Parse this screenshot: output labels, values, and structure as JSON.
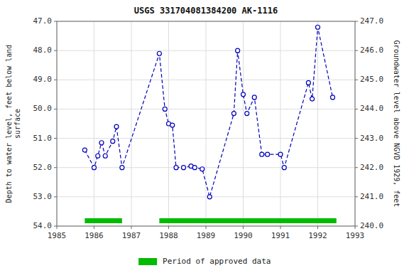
{
  "chart_data": {
    "type": "line",
    "title": "USGS 331704081384200 AK-1116",
    "y_label": "Depth to water level, feet below land\nsurface",
    "y2_label": "Groundwater level above NGVD 1929, feet",
    "xlim": [
      1985,
      1993
    ],
    "xticks": [
      1985,
      1986,
      1987,
      1988,
      1989,
      1990,
      1991,
      1992,
      1993
    ],
    "ylim": [
      54.0,
      47.0
    ],
    "yticks": [
      {
        "value": 47.0,
        "label": "47.0"
      },
      {
        "value": 48.0,
        "label": "48.0"
      },
      {
        "value": 49.0,
        "label": "49.0"
      },
      {
        "value": 50.0,
        "label": "50.0"
      },
      {
        "value": 51.0,
        "label": "51.0"
      },
      {
        "value": 52.0,
        "label": "52.0"
      },
      {
        "value": 53.0,
        "label": "53.0"
      },
      {
        "value": 54.0,
        "label": "54.0"
      }
    ],
    "y2lim": [
      240.0,
      247.0
    ],
    "y2ticks": [
      {
        "value": 247.0,
        "label": "247.0"
      },
      {
        "value": 246.0,
        "label": "246.0"
      },
      {
        "value": 245.0,
        "label": "245.0"
      },
      {
        "value": 244.0,
        "label": "244.0"
      },
      {
        "value": 243.0,
        "label": "243.0"
      },
      {
        "value": 242.0,
        "label": "242.0"
      },
      {
        "value": 241.0,
        "label": "241.0"
      },
      {
        "value": 240.0,
        "label": "240.0"
      }
    ],
    "grid": true,
    "x": [
      1985.75,
      1986.0,
      1986.1,
      1986.2,
      1986.3,
      1986.5,
      1986.6,
      1986.75,
      1987.75,
      1987.9,
      1988.0,
      1988.1,
      1988.2,
      1988.4,
      1988.6,
      1988.7,
      1988.9,
      1989.1,
      1989.75,
      1989.85,
      1990.0,
      1990.1,
      1990.3,
      1990.5,
      1990.65,
      1991.0,
      1991.1,
      1991.75,
      1991.85,
      1992.0,
      1992.4
    ],
    "series": [
      {
        "color": "#0000BB",
        "marker": "circle",
        "line_style": "dashed",
        "values": [
          51.4,
          52.0,
          51.6,
          51.15,
          51.6,
          51.1,
          50.6,
          52.0,
          48.1,
          50.0,
          50.5,
          50.55,
          52.0,
          52.0,
          51.95,
          52.0,
          52.05,
          53.0,
          50.15,
          48.0,
          49.5,
          50.15,
          49.6,
          51.55,
          51.55,
          51.55,
          52.0,
          49.1,
          49.65,
          47.2,
          49.6
        ]
      }
    ],
    "spans": [
      {
        "name": "Period of approved data",
        "color": "#00BB00",
        "ranges": [
          [
            1985.75,
            1986.75
          ],
          [
            1987.75,
            1992.5
          ]
        ]
      }
    ]
  }
}
